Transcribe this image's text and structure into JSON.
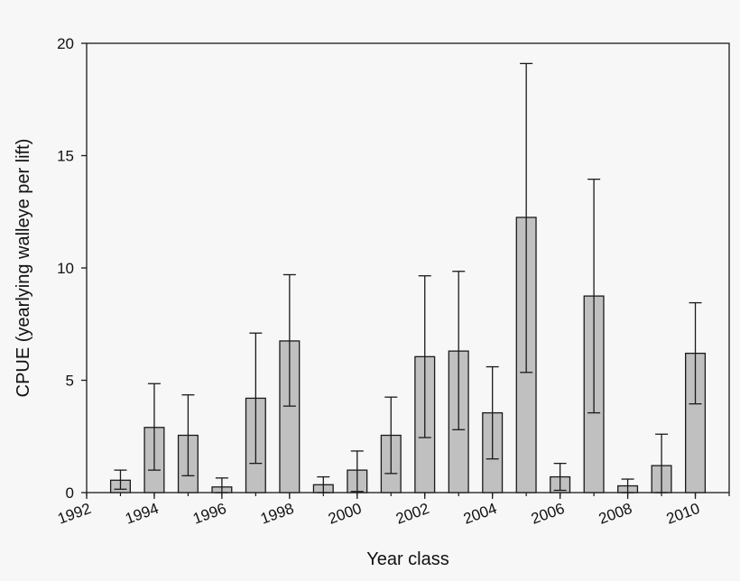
{
  "chart_data": {
    "type": "bar",
    "title": "",
    "xlabel": "Year class",
    "ylabel": "CPUE (yearlying walleye per lift)",
    "ylim": [
      0,
      20
    ],
    "xlim": [
      1992,
      2011
    ],
    "yticks": [
      0,
      5,
      10,
      15,
      20
    ],
    "xticks": [
      1992,
      1994,
      1996,
      1998,
      2000,
      2002,
      2004,
      2006,
      2008,
      2010
    ],
    "x": [
      1993,
      1994,
      1995,
      1996,
      1997,
      1998,
      1999,
      2000,
      2001,
      2002,
      2003,
      2004,
      2005,
      2006,
      2007,
      2008,
      2009,
      2010
    ],
    "values": [
      0.55,
      2.9,
      2.55,
      0.25,
      4.2,
      6.75,
      0.35,
      1.0,
      2.55,
      6.05,
      6.3,
      3.55,
      12.25,
      0.7,
      8.75,
      0.3,
      1.2,
      6.2
    ],
    "error_low": [
      0.15,
      1.0,
      0.75,
      0.0,
      1.3,
      3.85,
      0.0,
      0.05,
      0.85,
      2.45,
      2.8,
      1.5,
      5.35,
      0.1,
      3.55,
      0.0,
      0.0,
      3.95
    ],
    "error_high": [
      1.0,
      4.85,
      4.35,
      0.65,
      7.1,
      9.7,
      0.7,
      1.85,
      4.25,
      9.65,
      9.85,
      5.6,
      19.1,
      1.3,
      13.95,
      0.6,
      2.6,
      8.45
    ],
    "bar_color": "#c0c0c0",
    "edge_color": "#1a1a1a",
    "grid": false,
    "legend": "none"
  }
}
